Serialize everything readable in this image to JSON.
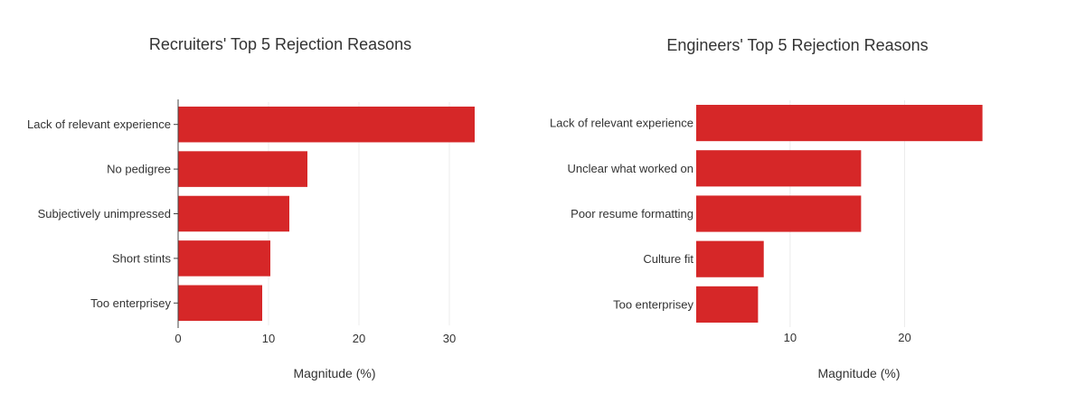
{
  "chart_data": [
    {
      "type": "bar",
      "orientation": "horizontal",
      "title": "Recruiters' Top 5 Rejection Reasons",
      "categories": [
        "Lack of relevant experience",
        "No pedigree",
        "Subjectively unimpressed",
        "Short stints",
        "Too enterprisey"
      ],
      "values": [
        32.8,
        14.3,
        12.3,
        10.2,
        9.3
      ],
      "xlabel": "Magnitude (%)",
      "ylabel": "",
      "xlim": [
        0,
        35
      ],
      "xticks": [
        0,
        10,
        20,
        30
      ],
      "xtick_labels": [
        "0",
        "10",
        "20",
        "30"
      ],
      "show_y_axis_line": true,
      "show_category_ticks": true,
      "color": "#d62728",
      "grid": true,
      "legend": "none"
    },
    {
      "type": "bar",
      "orientation": "horizontal",
      "title": "Engineers' Top 5 Rejection Reasons",
      "categories": [
        "Lack of relevant experience",
        "Unclear what worked on",
        "Poor resume formatting",
        "Culture fit",
        "Too enterprisey"
      ],
      "values": [
        26.8,
        16.2,
        16.2,
        7.7,
        7.2
      ],
      "xlabel": "Magnitude (%)",
      "ylabel": "",
      "xlim": [
        1.8,
        29.2
      ],
      "xticks": [
        10,
        20
      ],
      "xtick_labels": [
        "10",
        "20"
      ],
      "show_y_axis_line": false,
      "show_category_ticks": false,
      "color": "#d62728",
      "grid": true,
      "legend": "none"
    }
  ]
}
